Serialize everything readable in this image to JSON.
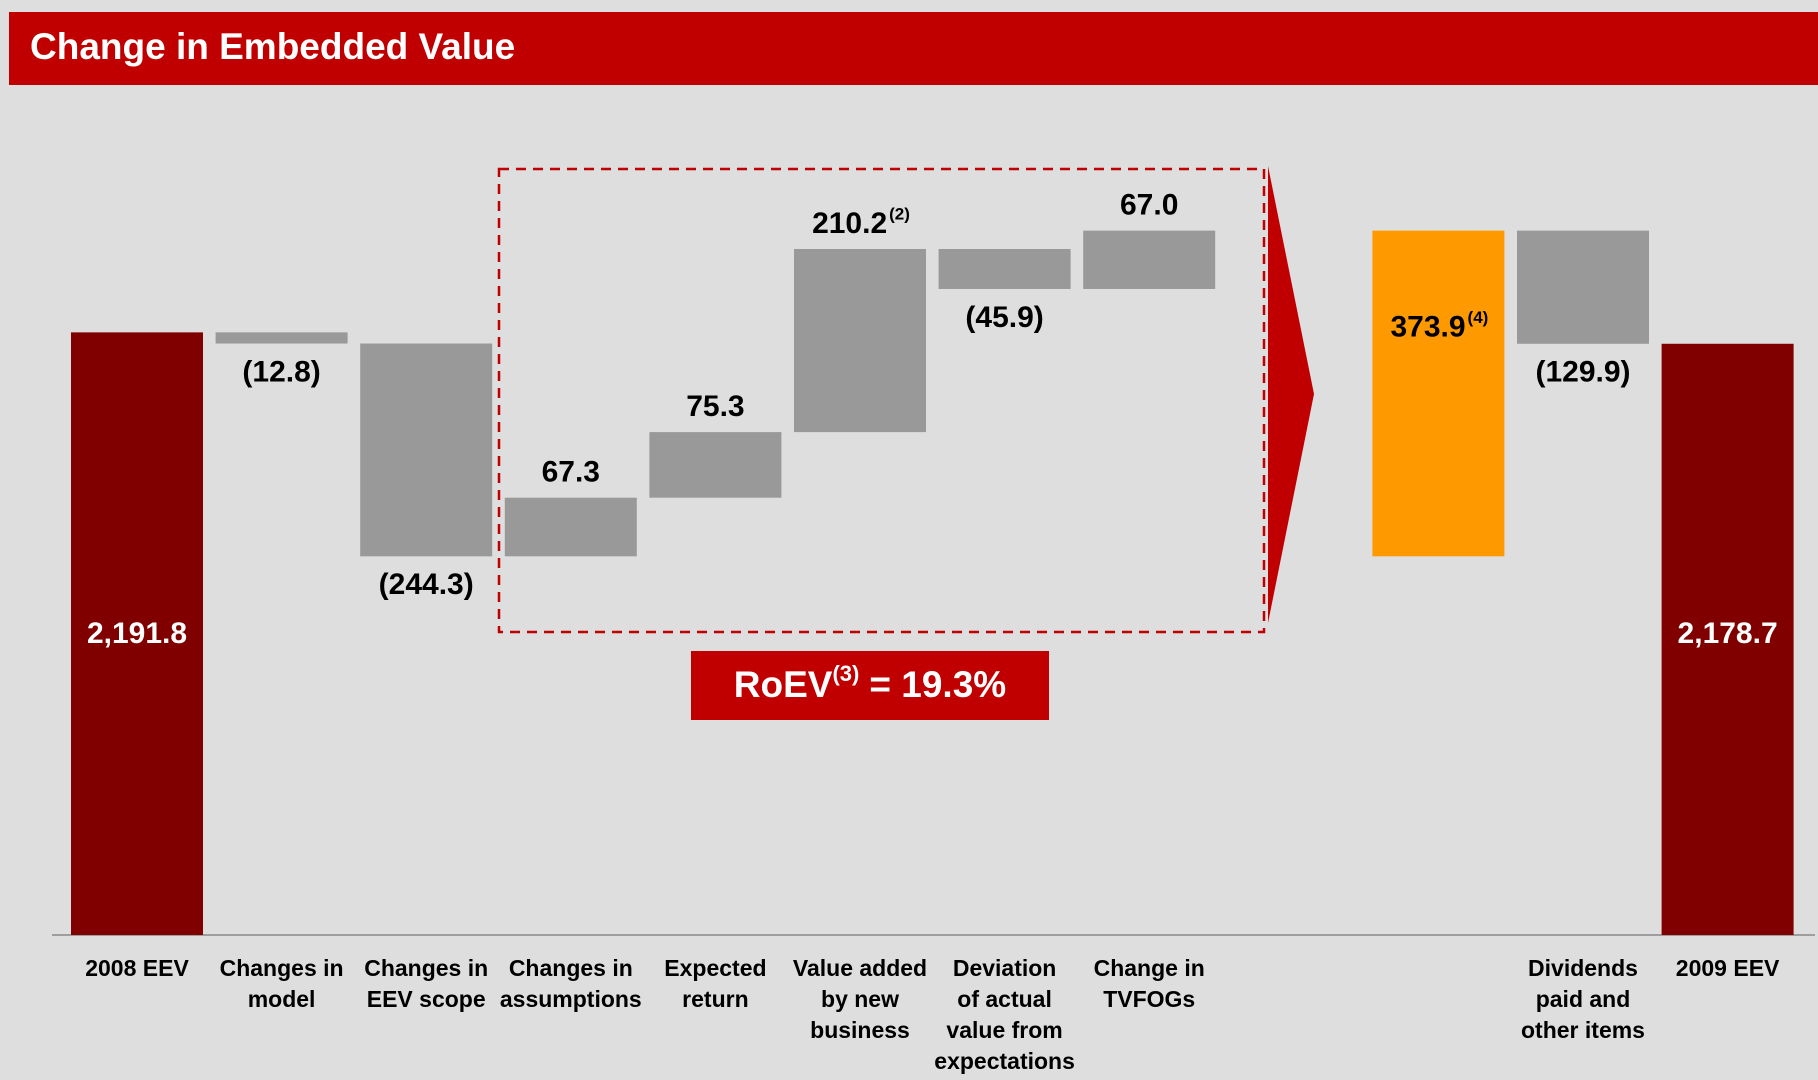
{
  "chart_data": {
    "type": "waterfall",
    "title": "Change in Embedded Value",
    "categories": [
      [
        "2008 EEV"
      ],
      [
        "Changes in",
        "model"
      ],
      [
        "Changes in",
        "EEV scope"
      ],
      [
        "Changes in",
        "assumptions"
      ],
      [
        "Expected",
        "return"
      ],
      [
        "Value added",
        "by new",
        "business"
      ],
      [
        "Deviation",
        "of actual",
        "value from",
        "expectations"
      ],
      [
        "Change in",
        "TVFOGs"
      ],
      null,
      [
        "Dividends",
        "paid and",
        "other items"
      ],
      [
        "2009 EEV"
      ]
    ],
    "values": [
      2191.8,
      -12.8,
      -244.3,
      67.3,
      75.3,
      210.2,
      -45.9,
      67.0,
      373.9,
      -129.9,
      2178.7
    ],
    "value_labels": [
      "2,191.8",
      "(12.8)",
      "(244.3)",
      "67.3",
      "75.3",
      "210.2",
      "(45.9)",
      "67.0",
      "373.9",
      "(129.9)",
      "2,178.7"
    ],
    "value_label_notes": [
      null,
      null,
      null,
      null,
      null,
      "(2)",
      null,
      null,
      "(4)",
      null,
      null
    ],
    "measures": [
      "total",
      "relative",
      "relative",
      "relative",
      "relative",
      "relative",
      "relative",
      "relative",
      "subtotal",
      "relative",
      "total"
    ],
    "colors": {
      "total": "#800000",
      "relative": "#999999",
      "subtotal": "#ff9900"
    },
    "ylim": [
      1500,
      2400
    ],
    "annotation": {
      "text": "RoEV",
      "note": "(3)",
      "rest": "= 19.3%"
    }
  }
}
